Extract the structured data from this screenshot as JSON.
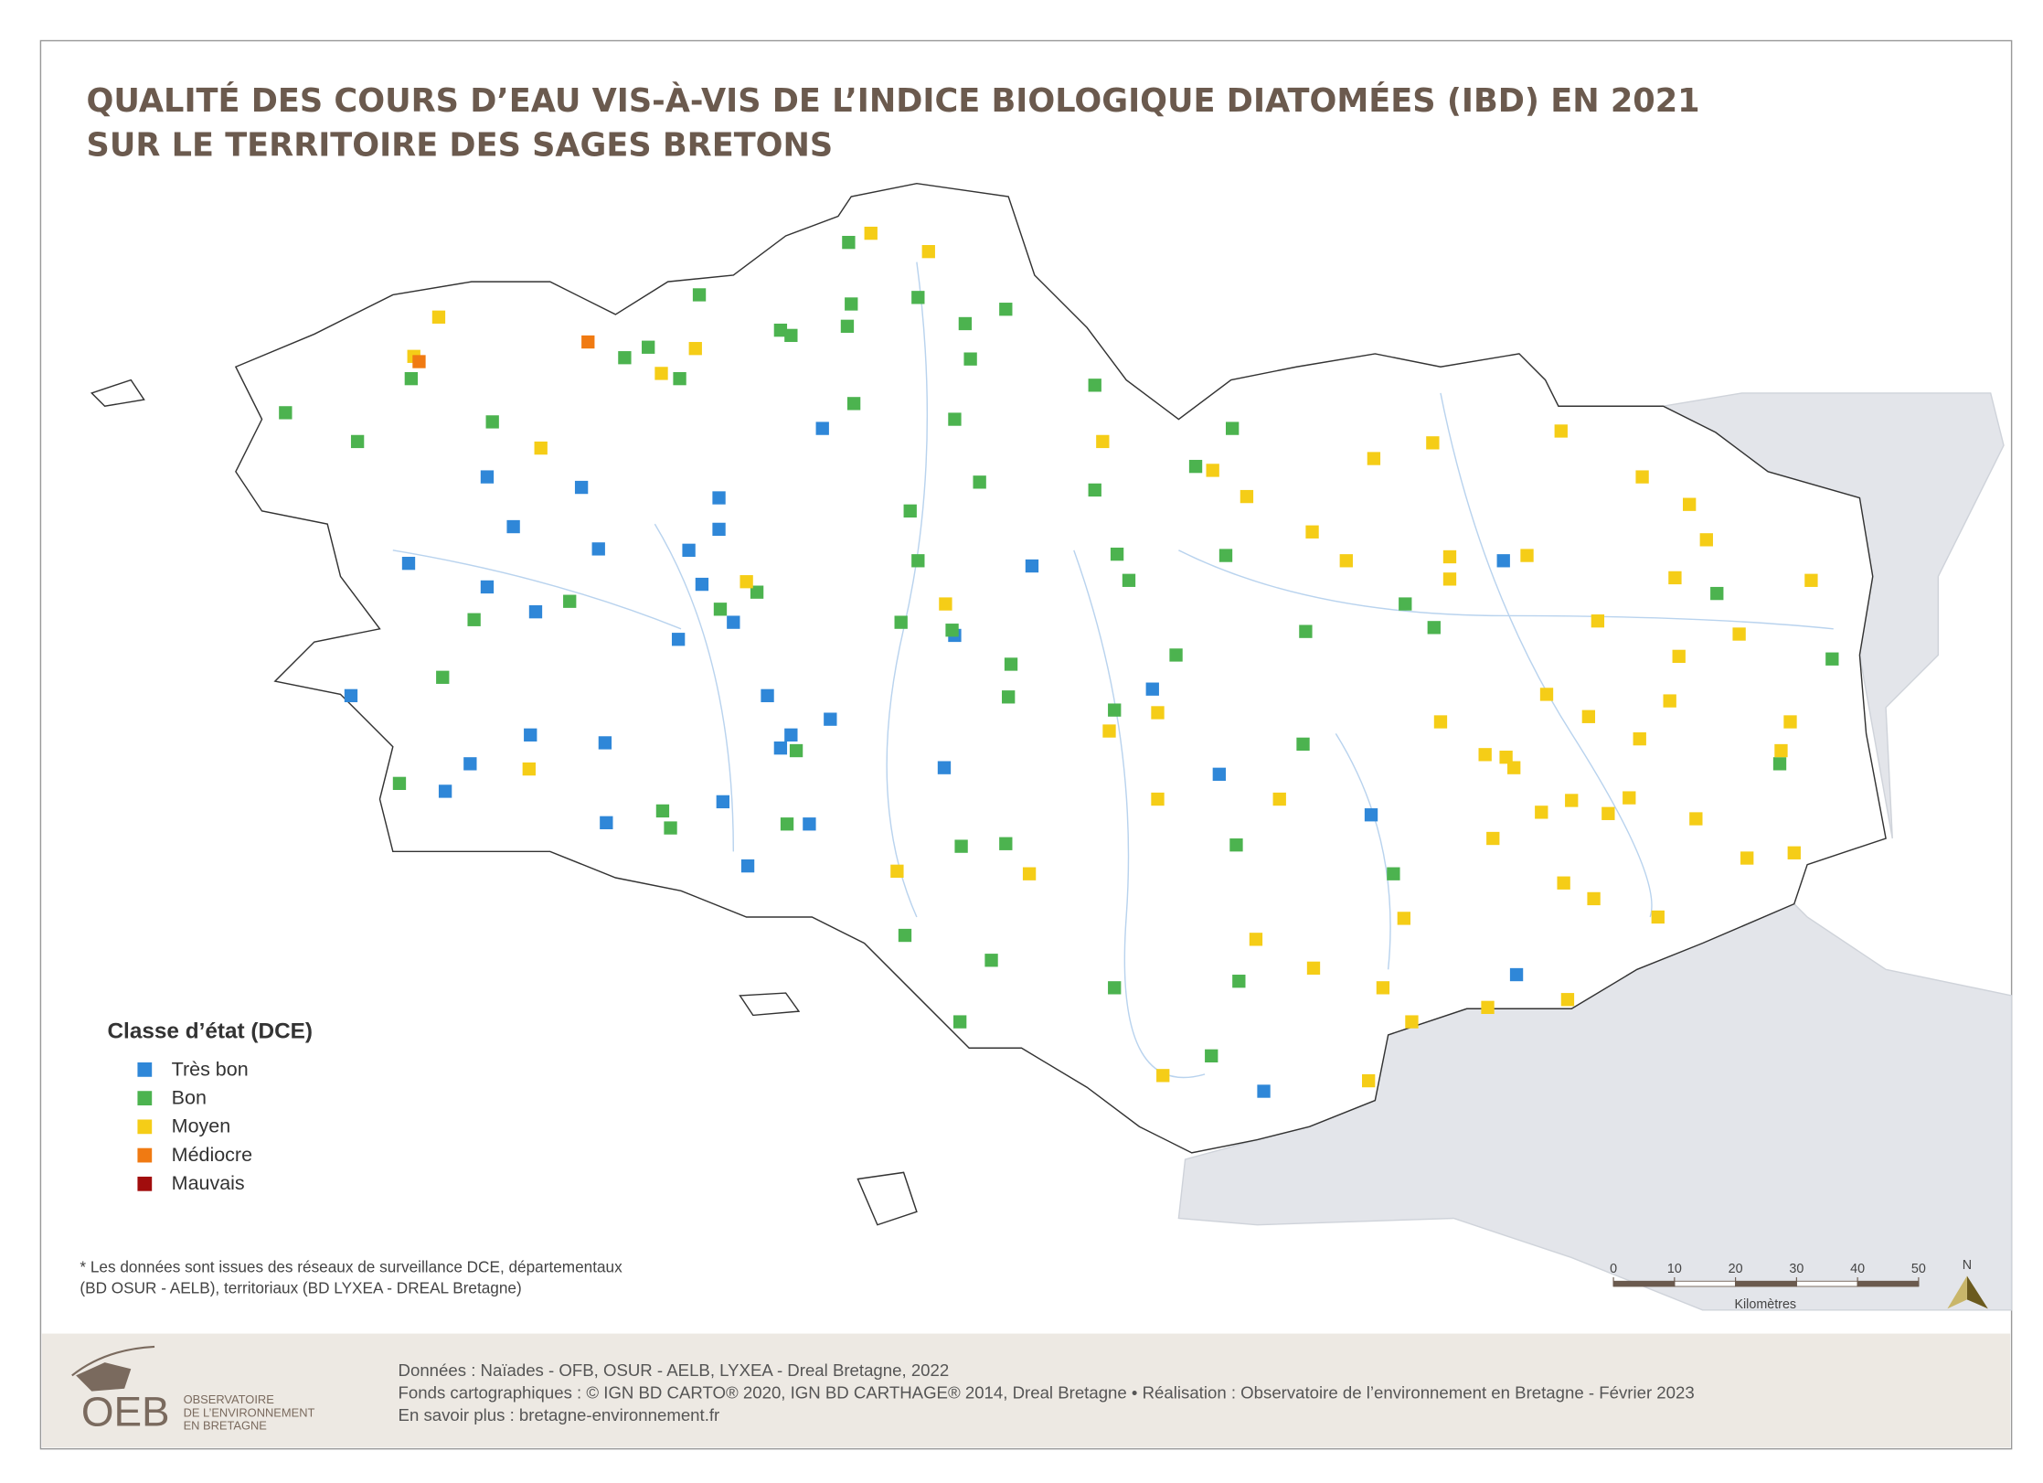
{
  "header": {
    "title": [
      "QUALITÉ DES COURS D’EAU VIS-À-VIS DE L’INDICE BIOLOGIQUE DIATOMÉES (IBD) EN 2021",
      "SUR LE TERRITOIRE DES SAGES BRETONS"
    ]
  },
  "legend": {
    "title": "Classe d’état (DCE)",
    "items": [
      {
        "label": "Très bon",
        "color": "#2f87d8"
      },
      {
        "label": "Bon",
        "color": "#4cb34f"
      },
      {
        "label": "Moyen",
        "color": "#f5cd17"
      },
      {
        "label": "Médiocre",
        "color": "#f07a12"
      },
      {
        "label": "Mauvais",
        "color": "#a10d0d"
      }
    ]
  },
  "note": [
    "* Les données sont issues des réseaux de surveillance DCE, départementaux",
    "(BD OSUR - AELB), territoriaux (BD LYXEA - DREAL Bretagne)"
  ],
  "scale": {
    "ticks": [
      0,
      10,
      20,
      30,
      40,
      50
    ],
    "unit": "Kilomètres",
    "north": "N"
  },
  "footer": {
    "credits": [
      "Données : Naïades - OFB, OSUR - AELB, LYXEA - Dreal Bretagne, 2022",
      "Fonds cartographiques : © IGN BD CARTO® 2020, IGN BD CARTHAGE® 2014, Dreal Bretagne • Réalisation : Observatoire de l’environnement en Bretagne - Février 2023",
      "En savoir plus : bretagne-environnement.fr"
    ],
    "logo": {
      "acronym": "OEB",
      "name": [
        "OBSERVATOIRE",
        "DE L’ENVIRONNEMENT",
        "EN BRETAGNE"
      ]
    }
  }
}
